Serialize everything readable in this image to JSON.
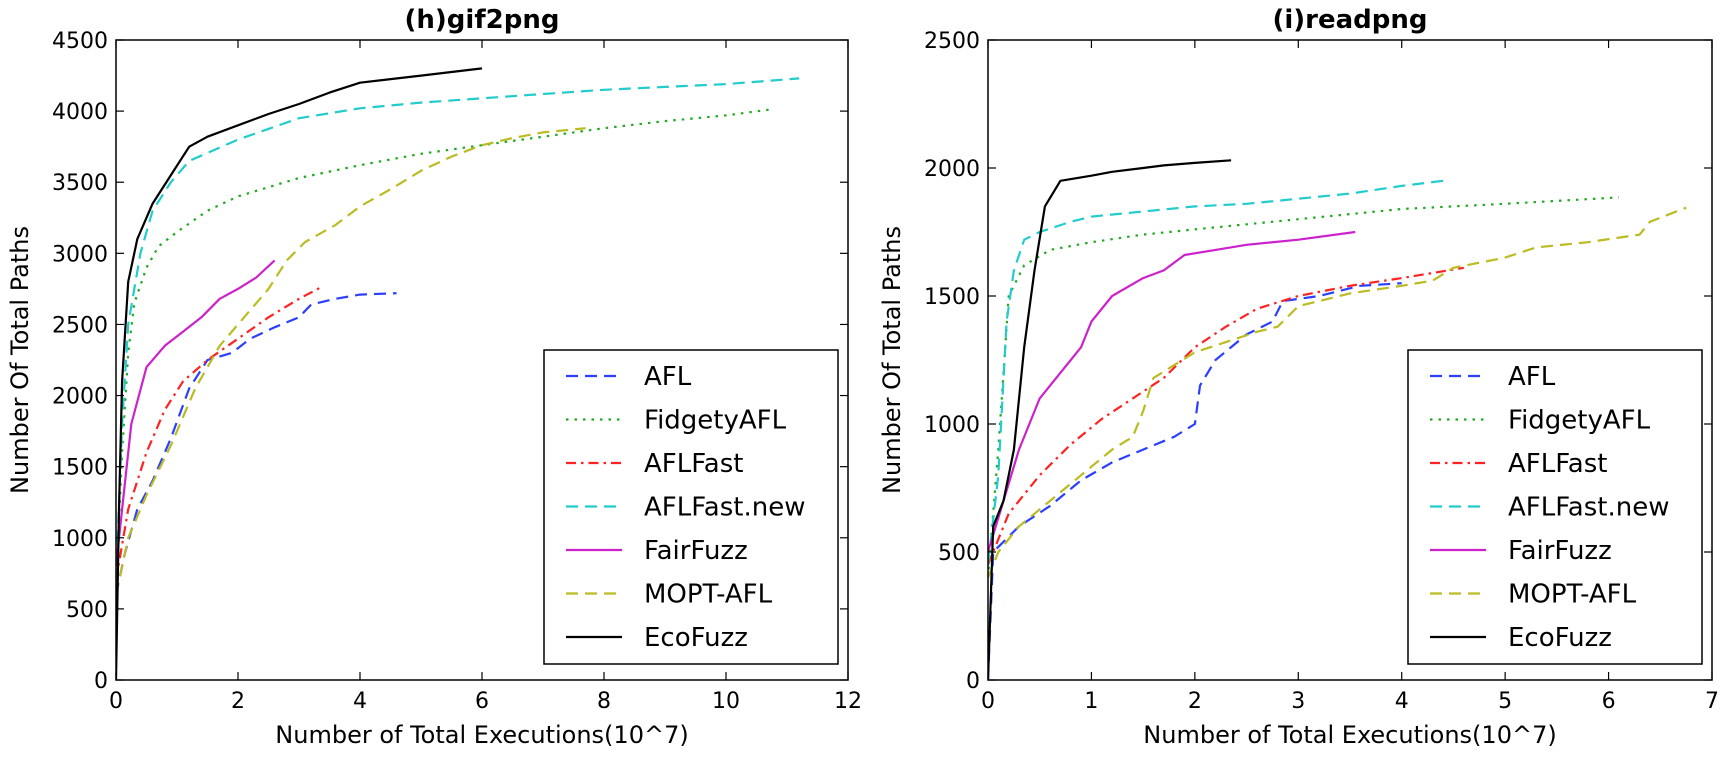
{
  "chart_data": [
    {
      "type": "line",
      "title": "(h)gif2png",
      "xlabel": "Number of Total Executions(10^7)",
      "ylabel": "Number Of Total Paths",
      "xlim": [
        0,
        12
      ],
      "ylim": [
        0,
        4500
      ],
      "xticks": [
        0,
        2,
        4,
        6,
        8,
        10,
        12
      ],
      "yticks": [
        0,
        500,
        1000,
        1500,
        2000,
        2500,
        3000,
        3500,
        4000,
        4500
      ],
      "grid": false,
      "legend_position": "lower-right",
      "series": [
        {
          "name": "AFL",
          "color": "#2b3fff",
          "dash": "dashed",
          "points": [
            [
              0,
              600
            ],
            [
              0.15,
              900
            ],
            [
              0.35,
              1200
            ],
            [
              0.6,
              1400
            ],
            [
              0.9,
              1700
            ],
            [
              1.2,
              2050
            ],
            [
              1.5,
              2250
            ],
            [
              1.9,
              2300
            ],
            [
              2.2,
              2400
            ],
            [
              2.6,
              2480
            ],
            [
              3.0,
              2550
            ],
            [
              3.2,
              2640
            ],
            [
              3.6,
              2680
            ],
            [
              4.0,
              2710
            ],
            [
              4.6,
              2720
            ]
          ]
        },
        {
          "name": "FidgetyAFL",
          "color": "#22aa22",
          "dash": "dotted",
          "points": [
            [
              0,
              650
            ],
            [
              0.1,
              1600
            ],
            [
              0.2,
              2300
            ],
            [
              0.3,
              2650
            ],
            [
              0.5,
              2900
            ],
            [
              0.7,
              3050
            ],
            [
              1.0,
              3150
            ],
            [
              1.5,
              3300
            ],
            [
              2.0,
              3400
            ],
            [
              3.0,
              3530
            ],
            [
              4.0,
              3620
            ],
            [
              5.0,
              3700
            ],
            [
              6.0,
              3760
            ],
            [
              7.0,
              3820
            ],
            [
              8.0,
              3880
            ],
            [
              9.0,
              3930
            ],
            [
              10.0,
              3970
            ],
            [
              10.7,
              4010
            ]
          ]
        },
        {
          "name": "AFLFast",
          "color": "#ff2222",
          "dash": "dashdot",
          "points": [
            [
              0,
              700
            ],
            [
              0.2,
              1200
            ],
            [
              0.5,
              1600
            ],
            [
              0.8,
              1900
            ],
            [
              1.1,
              2100
            ],
            [
              1.5,
              2250
            ],
            [
              2.0,
              2400
            ],
            [
              2.5,
              2550
            ],
            [
              3.0,
              2680
            ],
            [
              3.4,
              2770
            ]
          ]
        },
        {
          "name": "AFLFast.new",
          "color": "#22cccc",
          "dash": "dashed",
          "points": [
            [
              0,
              700
            ],
            [
              0.1,
              1800
            ],
            [
              0.2,
              2500
            ],
            [
              0.4,
              3000
            ],
            [
              0.6,
              3300
            ],
            [
              0.9,
              3500
            ],
            [
              1.2,
              3650
            ],
            [
              2.0,
              3800
            ],
            [
              3.0,
              3950
            ],
            [
              4.0,
              4020
            ],
            [
              5.0,
              4060
            ],
            [
              6.0,
              4090
            ],
            [
              7.0,
              4120
            ],
            [
              8.0,
              4150
            ],
            [
              9.0,
              4170
            ],
            [
              10.0,
              4190
            ],
            [
              11.2,
              4230
            ]
          ]
        },
        {
          "name": "FairFuzz",
          "color": "#cc22cc",
          "dash": "solid",
          "points": [
            [
              0,
              800
            ],
            [
              0.1,
              1200
            ],
            [
              0.25,
              1800
            ],
            [
              0.5,
              2200
            ],
            [
              0.8,
              2350
            ],
            [
              1.1,
              2450
            ],
            [
              1.4,
              2550
            ],
            [
              1.7,
              2680
            ],
            [
              2.0,
              2750
            ],
            [
              2.3,
              2830
            ],
            [
              2.6,
              2950
            ]
          ]
        },
        {
          "name": "MOPT-AFL",
          "color": "#bbbb22",
          "dash": "dashed",
          "points": [
            [
              0,
              600
            ],
            [
              0.2,
              1000
            ],
            [
              0.5,
              1300
            ],
            [
              0.9,
              1650
            ],
            [
              1.3,
              2050
            ],
            [
              1.7,
              2350
            ],
            [
              2.1,
              2550
            ],
            [
              2.5,
              2750
            ],
            [
              2.8,
              2950
            ],
            [
              3.1,
              3080
            ],
            [
              3.6,
              3200
            ],
            [
              4.0,
              3330
            ],
            [
              4.5,
              3450
            ],
            [
              5.0,
              3580
            ],
            [
              5.5,
              3680
            ],
            [
              6.0,
              3760
            ],
            [
              6.5,
              3810
            ],
            [
              7.0,
              3850
            ],
            [
              7.7,
              3880
            ]
          ]
        },
        {
          "name": "EcoFuzz",
          "color": "#000000",
          "dash": "solid",
          "points": [
            [
              0,
              0
            ],
            [
              0.05,
              1200
            ],
            [
              0.1,
              2100
            ],
            [
              0.2,
              2800
            ],
            [
              0.35,
              3100
            ],
            [
              0.6,
              3350
            ],
            [
              0.9,
              3550
            ],
            [
              1.2,
              3750
            ],
            [
              1.5,
              3820
            ],
            [
              2.0,
              3900
            ],
            [
              2.5,
              3980
            ],
            [
              3.0,
              4050
            ],
            [
              3.5,
              4130
            ],
            [
              4.0,
              4200
            ],
            [
              5.0,
              4250
            ],
            [
              6.0,
              4300
            ]
          ]
        }
      ]
    },
    {
      "type": "line",
      "title": "(i)readpng",
      "xlabel": "Number of Total Executions(10^7)",
      "ylabel": "Number Of Total Paths",
      "xlim": [
        0,
        7
      ],
      "ylim": [
        0,
        2500
      ],
      "xticks": [
        0,
        1,
        2,
        3,
        4,
        5,
        6,
        7
      ],
      "yticks": [
        0,
        500,
        1000,
        1500,
        2000,
        2500
      ],
      "grid": false,
      "legend_position": "lower-right",
      "series": [
        {
          "name": "AFL",
          "color": "#2b3fff",
          "dash": "dashed",
          "points": [
            [
              0,
              0
            ],
            [
              0.05,
              500
            ],
            [
              0.3,
              600
            ],
            [
              0.6,
              680
            ],
            [
              0.9,
              780
            ],
            [
              1.2,
              850
            ],
            [
              1.5,
              900
            ],
            [
              1.8,
              950
            ],
            [
              2.0,
              1000
            ],
            [
              2.05,
              1150
            ],
            [
              2.2,
              1250
            ],
            [
              2.5,
              1350
            ],
            [
              2.75,
              1400
            ],
            [
              2.85,
              1480
            ],
            [
              3.2,
              1500
            ],
            [
              3.6,
              1540
            ],
            [
              4.0,
              1550
            ]
          ]
        },
        {
          "name": "FidgetyAFL",
          "color": "#22aa22",
          "dash": "dotted",
          "points": [
            [
              0,
              400
            ],
            [
              0.1,
              900
            ],
            [
              0.2,
              1500
            ],
            [
              0.35,
              1620
            ],
            [
              0.6,
              1680
            ],
            [
              1.0,
              1710
            ],
            [
              1.5,
              1740
            ],
            [
              2.0,
              1760
            ],
            [
              3.0,
              1800
            ],
            [
              4.0,
              1840
            ],
            [
              5.0,
              1860
            ],
            [
              6.1,
              1885
            ]
          ]
        },
        {
          "name": "AFLFast",
          "color": "#ff2222",
          "dash": "dashdot",
          "points": [
            [
              0,
              450
            ],
            [
              0.2,
              650
            ],
            [
              0.5,
              800
            ],
            [
              0.8,
              920
            ],
            [
              1.1,
              1020
            ],
            [
              1.4,
              1100
            ],
            [
              1.7,
              1180
            ],
            [
              2.0,
              1300
            ],
            [
              2.3,
              1380
            ],
            [
              2.6,
              1450
            ],
            [
              3.0,
              1500
            ],
            [
              3.5,
              1540
            ],
            [
              4.0,
              1570
            ],
            [
              4.6,
              1610
            ]
          ]
        },
        {
          "name": "AFLFast.new",
          "color": "#22cccc",
          "dash": "dashed",
          "points": [
            [
              0,
              450
            ],
            [
              0.1,
              800
            ],
            [
              0.18,
              1400
            ],
            [
              0.25,
              1600
            ],
            [
              0.35,
              1720
            ],
            [
              0.5,
              1750
            ],
            [
              0.8,
              1790
            ],
            [
              1.0,
              1810
            ],
            [
              1.5,
              1830
            ],
            [
              2.0,
              1850
            ],
            [
              2.5,
              1860
            ],
            [
              3.0,
              1880
            ],
            [
              3.5,
              1900
            ],
            [
              4.0,
              1930
            ],
            [
              4.4,
              1950
            ]
          ]
        },
        {
          "name": "FairFuzz",
          "color": "#cc22cc",
          "dash": "solid",
          "points": [
            [
              0,
              500
            ],
            [
              0.15,
              700
            ],
            [
              0.3,
              900
            ],
            [
              0.5,
              1100
            ],
            [
              0.7,
              1200
            ],
            [
              0.9,
              1300
            ],
            [
              1.0,
              1400
            ],
            [
              1.2,
              1500
            ],
            [
              1.5,
              1570
            ],
            [
              1.7,
              1600
            ],
            [
              1.9,
              1660
            ],
            [
              2.2,
              1680
            ],
            [
              2.5,
              1700
            ],
            [
              3.0,
              1720
            ],
            [
              3.55,
              1750
            ]
          ]
        },
        {
          "name": "MOPT-AFL",
          "color": "#bbbb22",
          "dash": "dashed",
          "points": [
            [
              0,
              400
            ],
            [
              0.1,
              500
            ],
            [
              0.3,
              600
            ],
            [
              0.6,
              700
            ],
            [
              0.9,
              800
            ],
            [
              1.2,
              900
            ],
            [
              1.4,
              950
            ],
            [
              1.5,
              1050
            ],
            [
              1.6,
              1180
            ],
            [
              1.8,
              1230
            ],
            [
              2.0,
              1280
            ],
            [
              2.3,
              1320
            ],
            [
              2.6,
              1360
            ],
            [
              2.8,
              1380
            ],
            [
              3.0,
              1460
            ],
            [
              3.5,
              1510
            ],
            [
              4.0,
              1540
            ],
            [
              4.3,
              1560
            ],
            [
              4.5,
              1610
            ],
            [
              5.0,
              1650
            ],
            [
              5.3,
              1690
            ],
            [
              5.8,
              1710
            ],
            [
              6.3,
              1740
            ],
            [
              6.4,
              1790
            ],
            [
              6.75,
              1845
            ]
          ]
        },
        {
          "name": "EcoFuzz",
          "color": "#000000",
          "dash": "solid",
          "points": [
            [
              0,
              0
            ],
            [
              0.05,
              600
            ],
            [
              0.15,
              700
            ],
            [
              0.25,
              900
            ],
            [
              0.35,
              1300
            ],
            [
              0.45,
              1600
            ],
            [
              0.55,
              1850
            ],
            [
              0.7,
              1950
            ],
            [
              1.0,
              1970
            ],
            [
              1.2,
              1985
            ],
            [
              1.5,
              2000
            ],
            [
              1.7,
              2010
            ],
            [
              2.0,
              2020
            ],
            [
              2.35,
              2030
            ]
          ]
        }
      ]
    }
  ]
}
